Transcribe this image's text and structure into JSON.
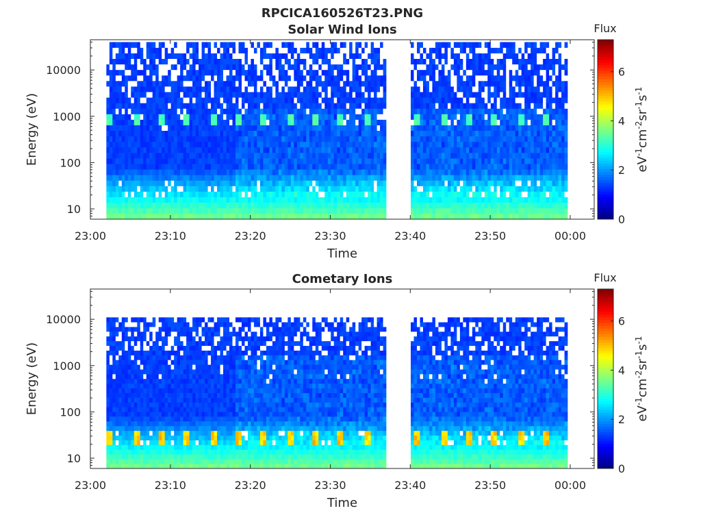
{
  "figure": {
    "title": "RPCICA160526T23.PNG"
  },
  "chart_data": [
    {
      "type": "heatmap",
      "title": "Solar Wind Ions",
      "xlabel": "Time",
      "ylabel": "Energy (eV)",
      "y_scale": "log",
      "ylim": [
        6,
        45000
      ],
      "x_ticks": [
        "23:00",
        "23:10",
        "23:20",
        "23:30",
        "23:40",
        "23:50",
        "00:00"
      ],
      "y_ticks": [
        {
          "value": 10,
          "label": "10"
        },
        {
          "value": 100,
          "label": "100"
        },
        {
          "value": 1000,
          "label": "1000"
        },
        {
          "value": 10000,
          "label": "10000"
        }
      ],
      "data_gaps": [
        [
          "23:00",
          "23:02"
        ],
        [
          "23:37",
          "23:40"
        ],
        [
          "23:59:40",
          "00:03"
        ]
      ],
      "pulses": {
        "energy_ev": 850,
        "period_min": 3.2,
        "start": "23:02"
      },
      "colorbar": {
        "label": "Flux",
        "unit_label": "eV-1cm-2sr-1s-1",
        "range": [
          0,
          7.3
        ],
        "ticks": [
          "0",
          "2",
          "4",
          "6"
        ],
        "colormap": "jet"
      }
    },
    {
      "type": "heatmap",
      "title": "Cometary Ions",
      "xlabel": "Time",
      "ylabel": "Energy (eV)",
      "y_scale": "log",
      "ylim": [
        6,
        45000
      ],
      "x_ticks": [
        "23:00",
        "23:10",
        "23:20",
        "23:30",
        "23:40",
        "23:50",
        "00:00"
      ],
      "y_ticks": [
        {
          "value": 10,
          "label": "10"
        },
        {
          "value": 100,
          "label": "100"
        },
        {
          "value": 1000,
          "label": "1000"
        },
        {
          "value": 10000,
          "label": "10000"
        }
      ],
      "data_gaps": [
        [
          "23:00",
          "23:02"
        ],
        [
          "23:37",
          "23:40"
        ],
        [
          "23:59:40",
          "00:03"
        ]
      ],
      "pulses": {
        "energy_ev": 30,
        "period_min": 3.2,
        "start": "23:02"
      },
      "colorbar": {
        "label": "Flux",
        "unit_label": "eV-1cm-2sr-1s-1",
        "range": [
          0,
          7.3
        ],
        "ticks": [
          "0",
          "2",
          "4",
          "6"
        ],
        "colormap": "jet"
      }
    }
  ]
}
